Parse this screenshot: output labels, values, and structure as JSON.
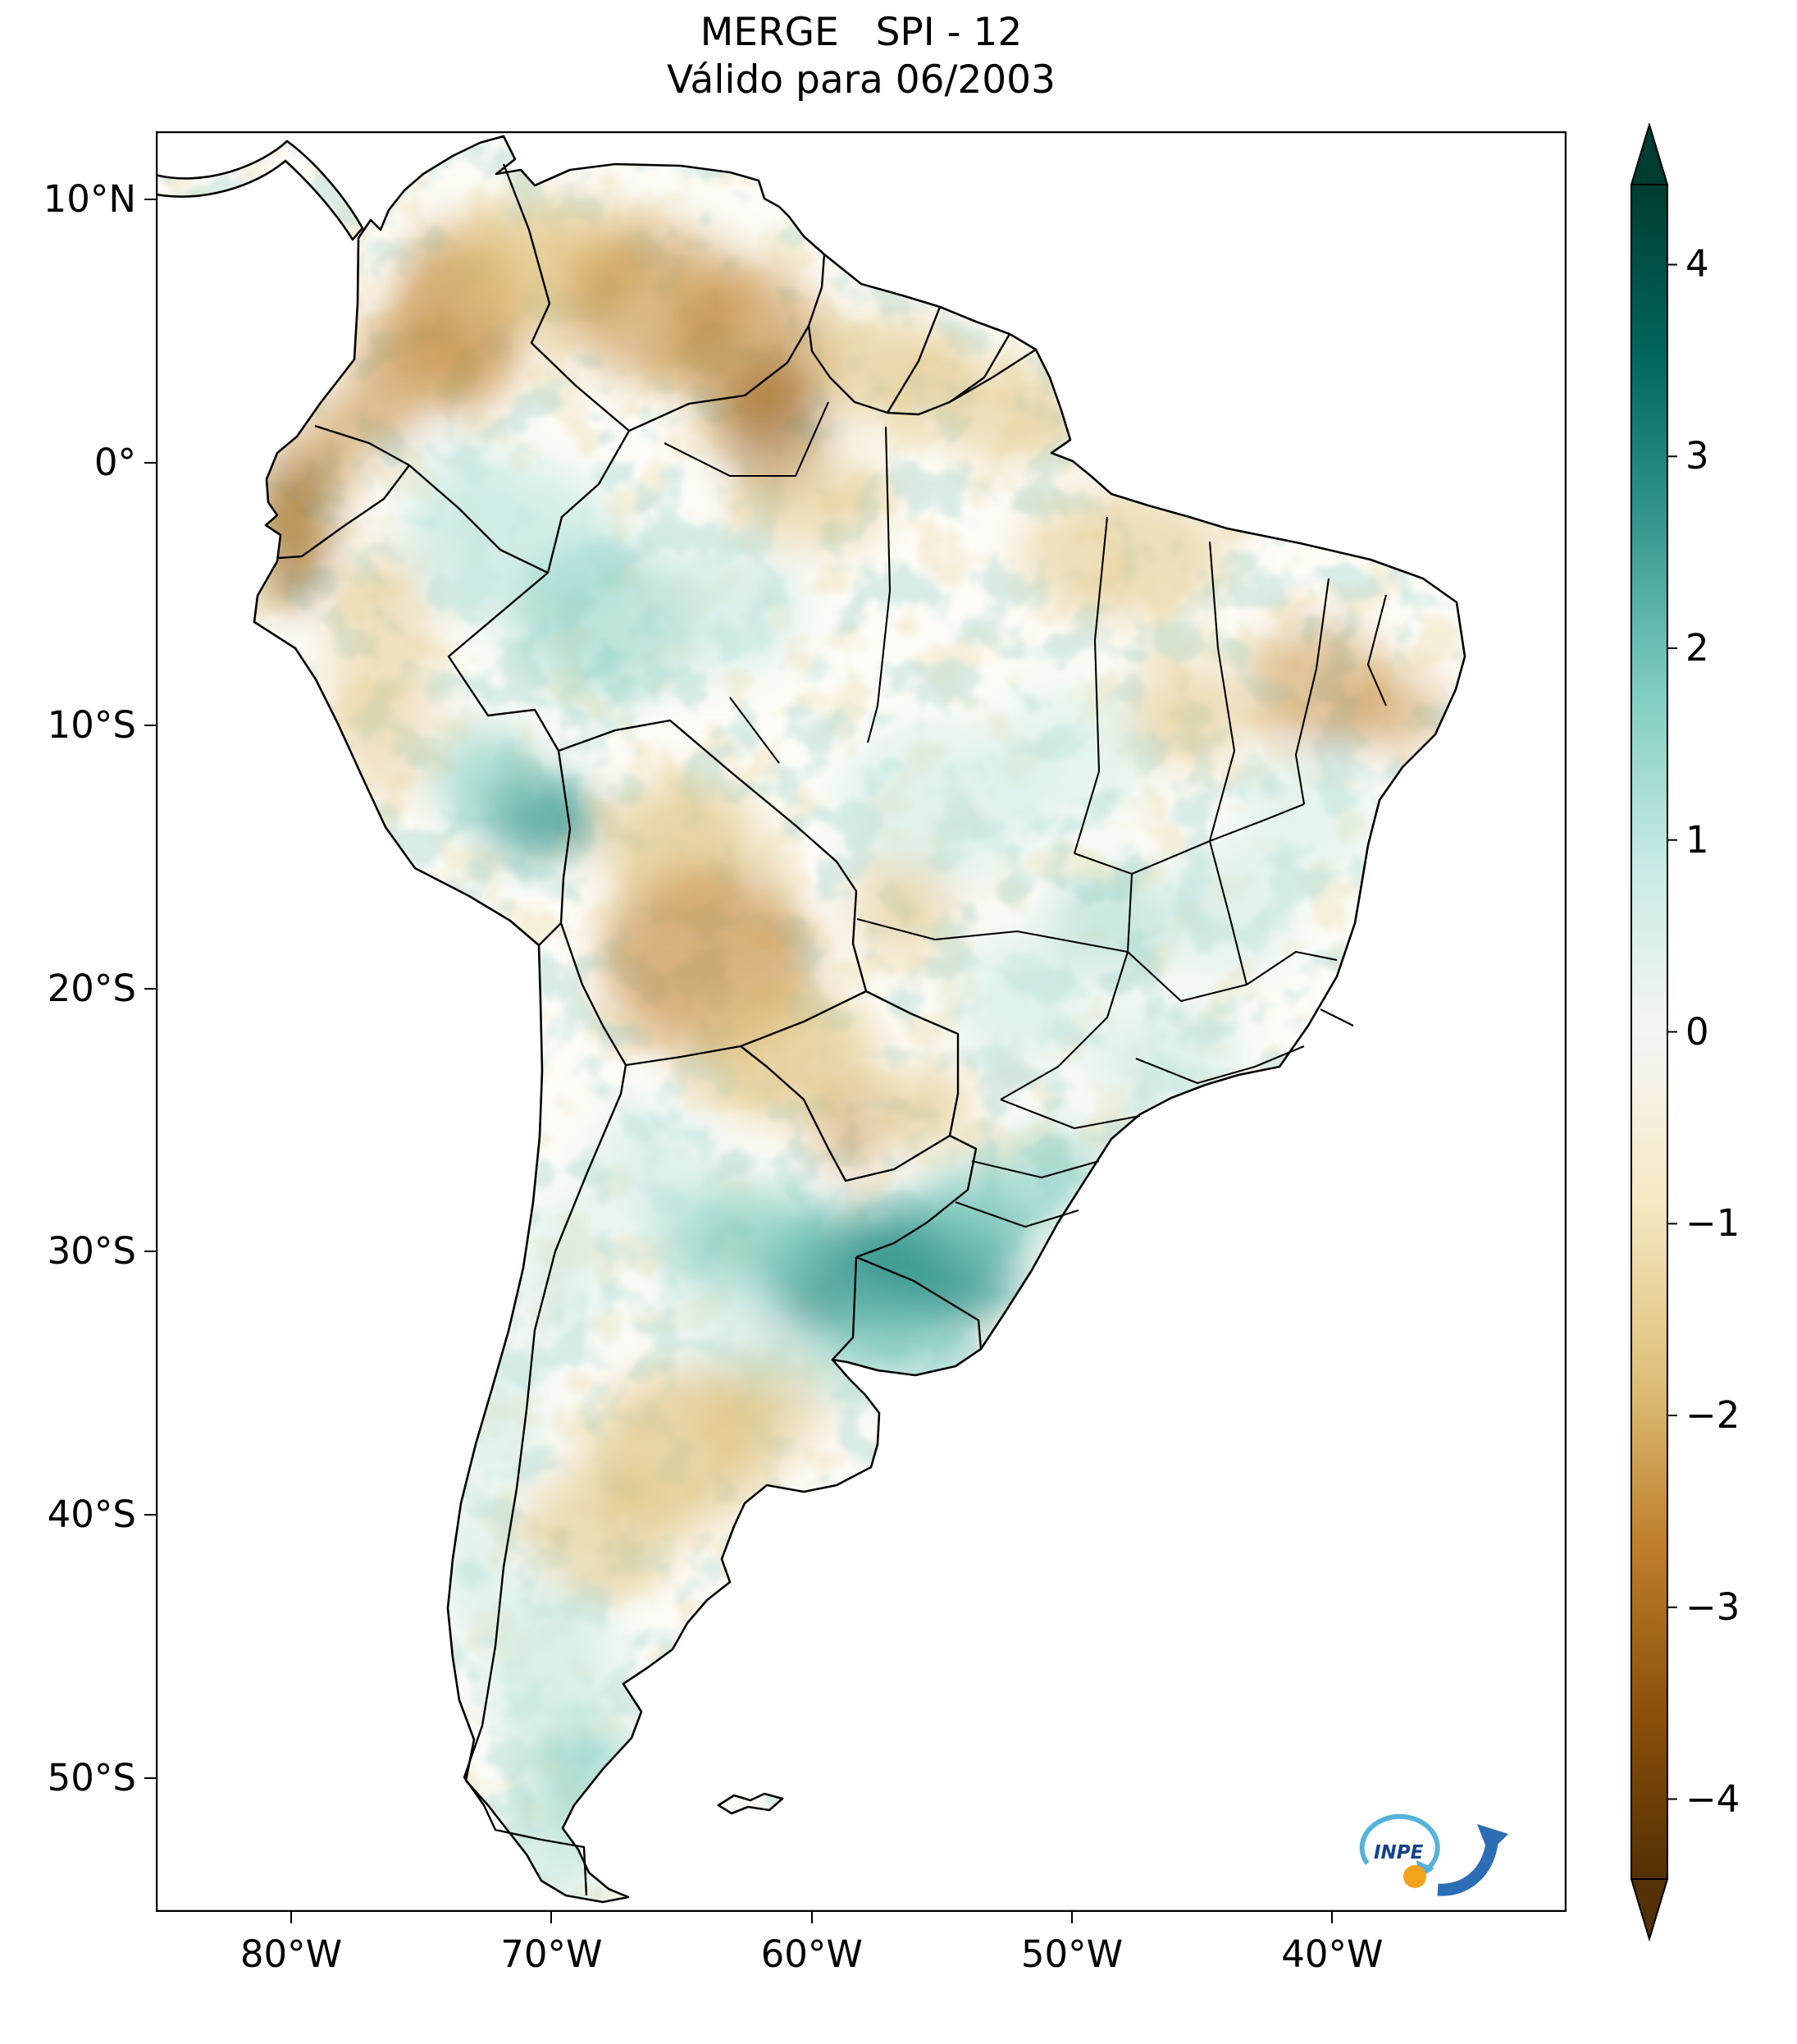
{
  "title": {
    "line1": "MERGE   SPI - 12",
    "line2": "Válido para 06/2003"
  },
  "axes": {
    "lat_ticks": [
      {
        "label": "10°N",
        "lat": 10
      },
      {
        "label": "0°",
        "lat": 0
      },
      {
        "label": "10°S",
        "lat": -10
      },
      {
        "label": "20°S",
        "lat": -20
      },
      {
        "label": "30°S",
        "lat": -30
      },
      {
        "label": "40°S",
        "lat": -40
      },
      {
        "label": "50°S",
        "lat": -50
      }
    ],
    "lon_ticks": [
      {
        "label": "80°W",
        "lon": -80
      },
      {
        "label": "70°W",
        "lon": -70
      },
      {
        "label": "60°W",
        "lon": -60
      },
      {
        "label": "50°W",
        "lon": -50
      },
      {
        "label": "40°W",
        "lon": -40
      }
    ]
  },
  "colorbar": {
    "vmin": -4.417,
    "vmax": 4.417,
    "stops": [
      "#003c30",
      "#01665e",
      "#35978f",
      "#80cdc1",
      "#c7eae5",
      "#f5f5f5",
      "#f6e8c3",
      "#dfc27d",
      "#bf812d",
      "#8c510a",
      "#543005"
    ],
    "ticks": [
      {
        "label": "4",
        "value": 4
      },
      {
        "label": "3",
        "value": 3
      },
      {
        "label": "2",
        "value": 2
      },
      {
        "label": "1",
        "value": 1
      },
      {
        "label": "0",
        "value": 0
      },
      {
        "label": "−1",
        "value": -1
      },
      {
        "label": "−2",
        "value": -2
      },
      {
        "label": "−3",
        "value": -3
      },
      {
        "label": "−4",
        "value": -4
      }
    ]
  },
  "logo": {
    "text": "INPE",
    "colors": {
      "orbit": "#54b2dc",
      "arrow": "#2d6db6",
      "dot": "#f4a31c",
      "text": "#16418c"
    }
  },
  "chart_data": {
    "type": "heatmap",
    "title": "MERGE   SPI - 12",
    "subtitle": "Válido para 06/2003",
    "variable": "SPI",
    "accumulation_months": 12,
    "valid_for": "06/2003",
    "region": "South America",
    "lon_range": [
      -85.2,
      -31.0
    ],
    "lat_range": [
      -55.1,
      12.6
    ],
    "value_range": [
      -4,
      4
    ],
    "legend_position": "right",
    "anomaly_blobs": [
      {
        "lon": -73.5,
        "lat": 5.5,
        "rx": 2.5,
        "ry": 3.5,
        "c": "#bf812d",
        "o": 0.7
      },
      {
        "lon": -76.3,
        "lat": 3.0,
        "rx": 1.5,
        "ry": 2.5,
        "c": "#bf812d",
        "o": 0.55
      },
      {
        "lon": -70.0,
        "lat": 7.5,
        "rx": 4.0,
        "ry": 2.5,
        "c": "#dfc27d",
        "o": 0.7
      },
      {
        "lon": -66.0,
        "lat": 6.0,
        "rx": 3.5,
        "ry": 3.0,
        "c": "#bf812d",
        "o": 0.5
      },
      {
        "lon": -62.5,
        "lat": 4.5,
        "rx": 3.0,
        "ry": 3.0,
        "c": "#bf812d",
        "o": 0.55
      },
      {
        "lon": -61.5,
        "lat": 1.5,
        "rx": 2.0,
        "ry": 2.5,
        "c": "#8c510a",
        "o": 0.55
      },
      {
        "lon": -57.0,
        "lat": 3.5,
        "rx": 3.0,
        "ry": 2.0,
        "c": "#dfc27d",
        "o": 0.6
      },
      {
        "lon": -52.5,
        "lat": 2.0,
        "rx": 3.0,
        "ry": 2.0,
        "c": "#dfc27d",
        "o": 0.5
      },
      {
        "lon": -60.0,
        "lat": -1.5,
        "rx": 3.0,
        "ry": 1.8,
        "c": "#dfc27d",
        "o": 0.5
      },
      {
        "lon": -48.0,
        "lat": -3.5,
        "rx": 4.0,
        "ry": 2.5,
        "c": "#dfc27d",
        "o": 0.5
      },
      {
        "lon": -80.0,
        "lat": -2.5,
        "rx": 1.5,
        "ry": 3.0,
        "c": "#8c510a",
        "o": 0.6
      },
      {
        "lon": -78.5,
        "lat": 0.5,
        "rx": 1.2,
        "ry": 2.0,
        "c": "#bf812d",
        "o": 0.55
      },
      {
        "lon": -76.5,
        "lat": -8.0,
        "rx": 2.0,
        "ry": 5.0,
        "c": "#dfc27d",
        "o": 0.45
      },
      {
        "lon": -71.5,
        "lat": -3.0,
        "rx": 4.0,
        "ry": 3.0,
        "c": "#c7eae5",
        "o": 0.75
      },
      {
        "lon": -68.0,
        "lat": -6.0,
        "rx": 3.5,
        "ry": 3.0,
        "c": "#80cdc1",
        "o": 0.5
      },
      {
        "lon": -63.5,
        "lat": -5.5,
        "rx": 3.0,
        "ry": 2.5,
        "c": "#c7eae5",
        "o": 0.6
      },
      {
        "lon": -73.5,
        "lat": -1.0,
        "rx": 2.0,
        "ry": 2.0,
        "c": "#c7eae5",
        "o": 0.5
      },
      {
        "lon": -70.5,
        "lat": -13.5,
        "rx": 2.2,
        "ry": 1.5,
        "c": "#35978f",
        "o": 0.8
      },
      {
        "lon": -72.5,
        "lat": -12.0,
        "rx": 2.0,
        "ry": 2.0,
        "c": "#80cdc1",
        "o": 0.6
      },
      {
        "lon": -65.0,
        "lat": -14.5,
        "rx": 3.0,
        "ry": 2.5,
        "c": "#dfc27d",
        "o": 0.65
      },
      {
        "lon": -64.0,
        "lat": -19.0,
        "rx": 4.0,
        "ry": 3.5,
        "c": "#bf812d",
        "o": 0.6
      },
      {
        "lon": -61.0,
        "lat": -22.5,
        "rx": 3.5,
        "ry": 2.5,
        "c": "#dfc27d",
        "o": 0.65
      },
      {
        "lon": -58.5,
        "lat": -25.5,
        "rx": 1.5,
        "ry": 1.5,
        "c": "#bf812d",
        "o": 0.45
      },
      {
        "lon": -55.5,
        "lat": -24.5,
        "rx": 1.6,
        "ry": 1.6,
        "c": "#dfc27d",
        "o": 0.6
      },
      {
        "lon": -55.0,
        "lat": -13.0,
        "rx": 4.0,
        "ry": 3.0,
        "c": "#c7eae5",
        "o": 0.5
      },
      {
        "lon": -50.0,
        "lat": -11.0,
        "rx": 3.0,
        "ry": 2.5,
        "c": "#c7eae5",
        "o": 0.45
      },
      {
        "lon": -45.5,
        "lat": -9.5,
        "rx": 2.5,
        "ry": 2.0,
        "c": "#dfc27d",
        "o": 0.5
      },
      {
        "lon": -40.5,
        "lat": -8.5,
        "rx": 2.5,
        "ry": 2.5,
        "c": "#bf812d",
        "o": 0.45
      },
      {
        "lon": -37.5,
        "lat": -9.5,
        "rx": 1.8,
        "ry": 1.5,
        "c": "#bf812d",
        "o": 0.45
      },
      {
        "lon": -41.0,
        "lat": -13.5,
        "rx": 2.5,
        "ry": 2.5,
        "c": "#c7eae5",
        "o": 0.45
      },
      {
        "lon": -44.0,
        "lat": -17.0,
        "rx": 2.5,
        "ry": 2.5,
        "c": "#c7eae5",
        "o": 0.5
      },
      {
        "lon": -48.5,
        "lat": -17.5,
        "rx": 2.5,
        "ry": 2.0,
        "c": "#80cdc1",
        "o": 0.4
      },
      {
        "lon": -52.0,
        "lat": -20.5,
        "rx": 2.5,
        "ry": 2.5,
        "c": "#c7eae5",
        "o": 0.55
      },
      {
        "lon": -46.5,
        "lat": -22.5,
        "rx": 3.0,
        "ry": 2.0,
        "c": "#c7eae5",
        "o": 0.55
      },
      {
        "lon": -56.5,
        "lat": -17.0,
        "rx": 2.0,
        "ry": 2.0,
        "c": "#dfc27d",
        "o": 0.5
      },
      {
        "lon": -58.0,
        "lat": -31.0,
        "rx": 4.0,
        "ry": 2.5,
        "c": "#35978f",
        "o": 0.85
      },
      {
        "lon": -62.5,
        "lat": -29.5,
        "rx": 3.5,
        "ry": 2.0,
        "c": "#80cdc1",
        "o": 0.7
      },
      {
        "lon": -55.0,
        "lat": -30.5,
        "rx": 3.0,
        "ry": 2.5,
        "c": "#35978f",
        "o": 0.8
      },
      {
        "lon": -53.5,
        "lat": -28.5,
        "rx": 2.5,
        "ry": 2.0,
        "c": "#80cdc1",
        "o": 0.65
      },
      {
        "lon": -50.5,
        "lat": -27.0,
        "rx": 2.0,
        "ry": 1.8,
        "c": "#80cdc1",
        "o": 0.5
      },
      {
        "lon": -57.0,
        "lat": -33.5,
        "rx": 3.0,
        "ry": 1.8,
        "c": "#80cdc1",
        "o": 0.65
      },
      {
        "lon": -66.0,
        "lat": -27.0,
        "rx": 2.5,
        "ry": 2.5,
        "c": "#c7eae5",
        "o": 0.55
      },
      {
        "lon": -69.5,
        "lat": -31.0,
        "rx": 1.5,
        "ry": 3.0,
        "c": "#c7eae5",
        "o": 0.55
      },
      {
        "lon": -60.5,
        "lat": -34.5,
        "rx": 2.5,
        "ry": 1.5,
        "c": "#c7eae5",
        "o": 0.55
      },
      {
        "lon": -63.0,
        "lat": -33.0,
        "rx": 2.5,
        "ry": 2.0,
        "c": "#c7eae5",
        "o": 0.5
      },
      {
        "lon": -65.0,
        "lat": -37.5,
        "rx": 3.5,
        "ry": 3.0,
        "c": "#dfc27d",
        "o": 0.65
      },
      {
        "lon": -68.0,
        "lat": -40.5,
        "rx": 3.0,
        "ry": 2.5,
        "c": "#dfc27d",
        "o": 0.55
      },
      {
        "lon": -62.0,
        "lat": -36.0,
        "rx": 2.5,
        "ry": 2.0,
        "c": "#dfc27d",
        "o": 0.5
      },
      {
        "lon": -70.0,
        "lat": -46.0,
        "rx": 2.5,
        "ry": 3.5,
        "c": "#c7eae5",
        "o": 0.65
      },
      {
        "lon": -68.5,
        "lat": -50.5,
        "rx": 2.5,
        "ry": 2.5,
        "c": "#80cdc1",
        "o": 0.55
      },
      {
        "lon": -70.5,
        "lat": -53.5,
        "rx": 2.5,
        "ry": 1.5,
        "c": "#c7eae5",
        "o": 0.65
      },
      {
        "lon": -72.0,
        "lat": -36.5,
        "rx": 1.5,
        "ry": 3.0,
        "c": "#c7eae5",
        "o": 0.55
      },
      {
        "lon": -73.0,
        "lat": -42.0,
        "rx": 1.5,
        "ry": 2.5,
        "c": "#c7eae5",
        "o": 0.55
      }
    ]
  }
}
